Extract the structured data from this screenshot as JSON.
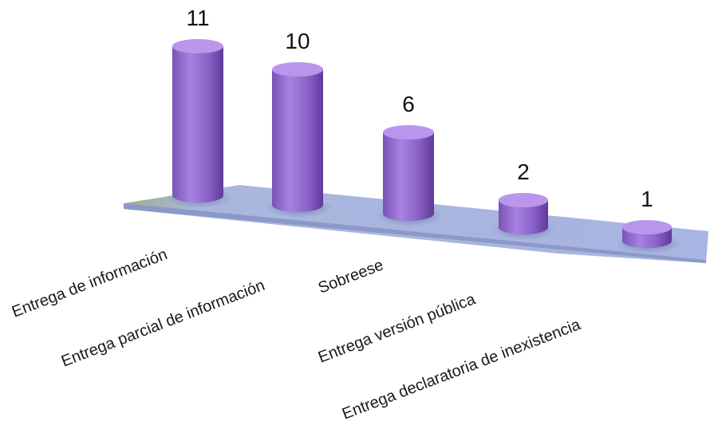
{
  "chart_data": {
    "type": "bar",
    "style": "3d-cylinder",
    "title": "",
    "xlabel": "",
    "ylabel": "",
    "categories": [
      "Entrega de información",
      "Entrega parcial de información",
      "Sobreese",
      "Entrega versión pública",
      "Entrega declaratoria de inexistencia"
    ],
    "values": [
      11,
      10,
      6,
      2,
      1
    ],
    "ylim": [
      0,
      11
    ],
    "grid": false,
    "legend": "none",
    "colors": {
      "bar": "#9b6fd6",
      "bar_dark": "#6c46a8",
      "bar_top": "#b996ec",
      "floor": "#a9b8e0",
      "floor_edge": "#8fa36e"
    }
  }
}
